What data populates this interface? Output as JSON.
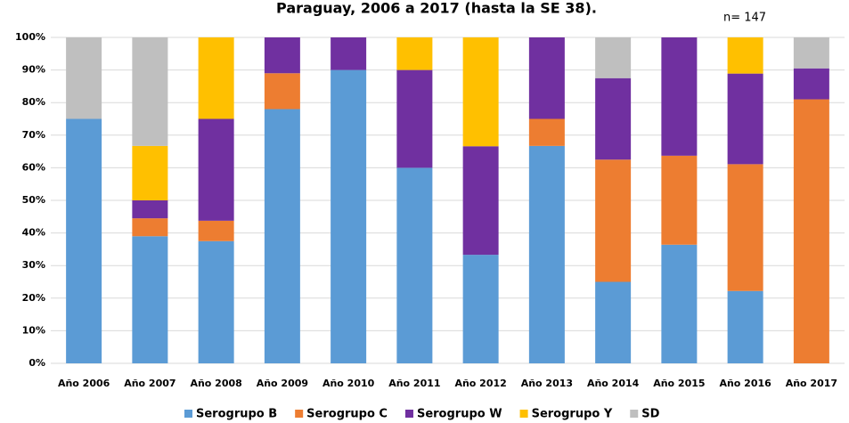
{
  "chart_data": {
    "type": "stacked_bar",
    "title": "Paraguay, 2006 a 2017 (hasta la SE 38).",
    "annotation": "n= 147",
    "categories": [
      "Año 2006",
      "Año 2007",
      "Año 2008",
      "Año 2009",
      "Año 2010",
      "Año 2011",
      "Año 2012",
      "Año 2013",
      "Año 2014",
      "Año 2015",
      "Año 2016",
      "Año 2017"
    ],
    "series": [
      {
        "name": "Serogrupo B",
        "color": "#5b9bd5",
        "values": [
          75,
          39,
          37.5,
          78,
          90,
          60,
          33.3,
          66.7,
          25,
          36.4,
          22.2,
          0
        ]
      },
      {
        "name": "Serogrupo C",
        "color": "#ed7d31",
        "values": [
          0,
          5.5,
          6.25,
          11,
          0,
          0,
          0,
          8.3,
          37.5,
          27.3,
          38.9,
          81
        ]
      },
      {
        "name": "Serogrupo W",
        "color": "#7030a0",
        "values": [
          0,
          5.5,
          31.25,
          11,
          10,
          30,
          33.3,
          25,
          25,
          36.3,
          27.8,
          9.5
        ]
      },
      {
        "name": "Serogrupo Y",
        "color": "#ffc000",
        "values": [
          0,
          16.7,
          25,
          0,
          0,
          10,
          33.4,
          0,
          0,
          0,
          11.1,
          0
        ]
      },
      {
        "name": "SD",
        "color": "#bfbfbf",
        "values": [
          25,
          33.3,
          0,
          0,
          0,
          0,
          0,
          0,
          12.5,
          0,
          0,
          9.5
        ]
      }
    ],
    "ylim": [
      0,
      100
    ],
    "yticks": [
      {
        "value": 0,
        "label": "0%"
      },
      {
        "value": 10,
        "label": "10%"
      },
      {
        "value": 20,
        "label": "20%"
      },
      {
        "value": 30,
        "label": "30%"
      },
      {
        "value": 40,
        "label": "40%"
      },
      {
        "value": 50,
        "label": "50%"
      },
      {
        "value": 60,
        "label": "60%"
      },
      {
        "value": 70,
        "label": "70%"
      },
      {
        "value": 80,
        "label": "80%"
      },
      {
        "value": 90,
        "label": "90%"
      },
      {
        "value": 100,
        "label": "100%"
      }
    ],
    "grid": true
  }
}
